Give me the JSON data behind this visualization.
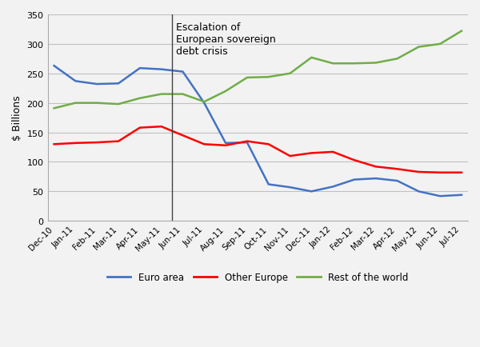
{
  "x_labels": [
    "Dec-10",
    "Jan-11",
    "Feb-11",
    "Mar-11",
    "Apr-11",
    "May-11",
    "Jun-11",
    "Jul-11",
    "Aug-11",
    "Sep-11",
    "Oct-11",
    "Nov-11",
    "Dec-11",
    "Jan-12",
    "Feb-12",
    "Mar-12",
    "Apr-12",
    "May-12",
    "Jun-12",
    "Jul-12"
  ],
  "euro_area": [
    263,
    237,
    232,
    233,
    259,
    257,
    253,
    200,
    132,
    133,
    62,
    57,
    50,
    58,
    70,
    72,
    68,
    50,
    42,
    44
  ],
  "other_europe": [
    130,
    132,
    133,
    135,
    158,
    160,
    145,
    130,
    128,
    135,
    130,
    110,
    115,
    117,
    103,
    92,
    88,
    83,
    82,
    82
  ],
  "rest_of_world": [
    191,
    200,
    200,
    198,
    208,
    215,
    215,
    202,
    220,
    243,
    244,
    250,
    277,
    267,
    267,
    268,
    275,
    295,
    300,
    322
  ],
  "euro_color": "#4472C4",
  "other_europe_color": "#FF0000",
  "rest_color": "#70AD47",
  "annotation_text": "Escalation of\nEuropean sovereign\ndebt crisis",
  "vline_x": 5.5,
  "ylabel": "$ Billions",
  "ylim": [
    0,
    350
  ],
  "yticks": [
    0,
    50,
    100,
    150,
    200,
    250,
    300,
    350
  ],
  "legend_labels": [
    "Euro area",
    "Other Europe",
    "Rest of the world"
  ],
  "bg_color": "#f2f2f2",
  "plot_bg_color": "#f2f2f2",
  "grid_color": "#c0c0c0"
}
